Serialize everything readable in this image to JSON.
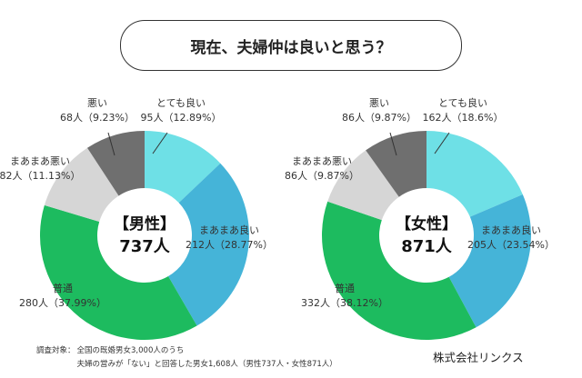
{
  "title": "現在、夫婦仲は良いと思う？",
  "chart_data": [
    {
      "type": "pie",
      "subtype": "donut",
      "center_label": "【男性】",
      "center_total": "737人",
      "categories": [
        "とても良い",
        "まあまあ良い",
        "普通",
        "まあまあ悪い",
        "悪い"
      ],
      "values": [
        95,
        212,
        280,
        82,
        68
      ],
      "percent_labels": [
        "95人（12.89%）",
        "212人（28.77%）",
        "280人（37.99%）",
        "82人（11.13%）",
        "68人（9.23%）"
      ],
      "colors": [
        "#6ee0e6",
        "#45b4d8",
        "#1dbb5f",
        "#d6d6d6",
        "#6f6f6f"
      ]
    },
    {
      "type": "pie",
      "subtype": "donut",
      "center_label": "【女性】",
      "center_total": "871人",
      "categories": [
        "とても良い",
        "まあまあ良い",
        "普通",
        "まあまあ悪い",
        "悪い"
      ],
      "values": [
        162,
        205,
        332,
        86,
        86
      ],
      "percent_labels": [
        "162人（18.6%）",
        "205人（23.54%）",
        "332人（38.12%）",
        "86人（9.87%）",
        "86人（9.87%）"
      ],
      "colors": [
        "#6ee0e6",
        "#45b4d8",
        "#1dbb5f",
        "#d6d6d6",
        "#6f6f6f"
      ]
    }
  ],
  "footnote": {
    "label": "調査対象：",
    "line1": "全国の既婚男女3,000人のうち",
    "line2": "夫婦の営みが「ない」と回答した男女1,608人（男性737人・女性871人）"
  },
  "company": "株式会社リンクス"
}
